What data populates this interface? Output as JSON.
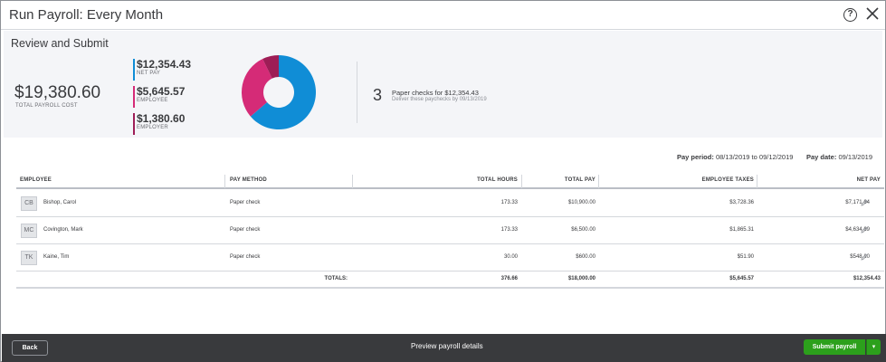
{
  "window": {
    "title": "Run Payroll: Every Month"
  },
  "summary": {
    "section_title": "Review and Submit",
    "total_cost": "$19,380.60",
    "total_cost_label": "TOTAL PAYROLL COST",
    "legend": [
      {
        "amount": "$12,354.43",
        "label": "NET PAY",
        "color": "#108dd6"
      },
      {
        "amount": "$5,645.57",
        "label": "EMPLOYEE",
        "color": "#d52b77"
      },
      {
        "amount": "$1,380.60",
        "label": "EMPLOYER",
        "color": "#9e1d56"
      }
    ],
    "checks_count": "3",
    "checks_text": "Paper checks for $12,354.43",
    "checks_sub": "Deliver these paychecks by 09/13/2019"
  },
  "chart_data": {
    "type": "pie",
    "categories": [
      "NET PAY",
      "EMPLOYEE",
      "EMPLOYER"
    ],
    "values": [
      12354.43,
      5645.57,
      1380.6
    ],
    "colors": [
      "#108dd6",
      "#d52b77",
      "#9e1d56"
    ]
  },
  "pay_info": {
    "period_label": "Pay period:",
    "period_value": "08/13/2019 to 09/12/2019",
    "date_label": "Pay date:",
    "date_value": "09/13/2019"
  },
  "table": {
    "headers": [
      "EMPLOYEE",
      "PAY METHOD",
      "TOTAL HOURS",
      "TOTAL PAY",
      "EMPLOYEE TAXES",
      "NET PAY"
    ],
    "rows": [
      {
        "initials": "CB",
        "name": "Bishop, Carol",
        "method": "Paper check",
        "hours": "173.33",
        "pay": "$10,900.00",
        "taxes": "$3,728.36",
        "net": "$7,171.64"
      },
      {
        "initials": "MC",
        "name": "Covington, Mark",
        "method": "Paper check",
        "hours": "173.33",
        "pay": "$6,500.00",
        "taxes": "$1,865.31",
        "net": "$4,634.69"
      },
      {
        "initials": "TK",
        "name": "Kaine, Tim",
        "method": "Paper check",
        "hours": "30.00",
        "pay": "$600.00",
        "taxes": "$51.90",
        "net": "$548.10"
      }
    ],
    "totals": {
      "label": "TOTALS:",
      "hours": "376.66",
      "pay": "$18,000.00",
      "taxes": "$5,645.57",
      "net": "$12,354.43"
    }
  },
  "footer": {
    "back_label": "Back",
    "preview_label": "Preview payroll details",
    "submit_label": "Submit payroll",
    "submit_caret": "▾"
  }
}
